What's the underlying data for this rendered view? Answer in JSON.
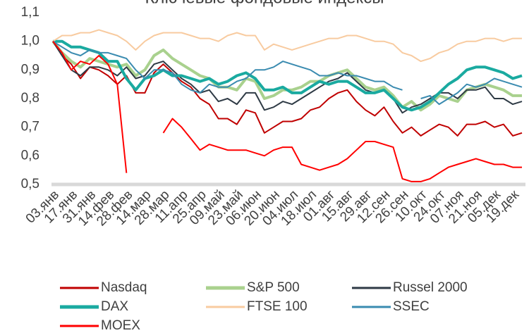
{
  "chart_data": {
    "type": "line",
    "title": "Ключевые фондовые индексы",
    "categories": [
      "03.янв",
      null,
      "17.янв",
      null,
      "31.янв",
      null,
      "14.фев",
      null,
      "28.фев",
      null,
      "14.мар",
      null,
      "28.мар",
      null,
      "11.апр",
      null,
      "25.апр",
      null,
      "09.май",
      null,
      "23.май",
      null,
      "06.июн",
      null,
      "20.июн",
      null,
      "04.июл",
      null,
      "18.июл",
      null,
      "01.авг",
      null,
      "15.авг",
      null,
      "29.авг",
      null,
      "12.сен",
      null,
      "26.сен",
      null,
      "10.окт",
      null,
      "24.окт",
      null,
      "07.ноя",
      null,
      "21.ноя",
      null,
      "05.дек",
      null,
      "19.дек",
      null
    ],
    "ylim": [
      0.5,
      1.1
    ],
    "yticks": [
      {
        "value": 0.5,
        "label": "0,5"
      },
      {
        "value": 0.6,
        "label": "0,6"
      },
      {
        "value": 0.7,
        "label": "0,7"
      },
      {
        "value": 0.8,
        "label": "0,8"
      },
      {
        "value": 0.9,
        "label": "0,9"
      },
      {
        "value": 1.0,
        "label": "1,0"
      },
      {
        "value": 1.1,
        "label": "1,1"
      }
    ],
    "grid": false,
    "series": [
      {
        "name": "Nasdaq",
        "color": "#c00000",
        "width": 2,
        "values": [
          1.0,
          0.95,
          0.92,
          0.87,
          0.91,
          0.9,
          0.88,
          0.85,
          0.88,
          0.82,
          0.82,
          0.89,
          0.92,
          0.89,
          0.86,
          0.84,
          0.8,
          0.78,
          0.73,
          0.73,
          0.71,
          0.76,
          0.75,
          0.68,
          0.7,
          0.72,
          0.72,
          0.73,
          0.76,
          0.77,
          0.8,
          0.82,
          0.83,
          0.79,
          0.76,
          0.74,
          0.77,
          0.72,
          0.68,
          0.7,
          0.67,
          0.69,
          0.71,
          0.7,
          0.67,
          0.71,
          0.71,
          0.72,
          0.7,
          0.71,
          0.67,
          0.68
        ]
      },
      {
        "name": "S&P 500",
        "color": "#a9d18e",
        "width": 4,
        "values": [
          1.0,
          0.96,
          0.93,
          0.91,
          0.94,
          0.93,
          0.92,
          0.91,
          0.92,
          0.88,
          0.9,
          0.95,
          0.97,
          0.94,
          0.92,
          0.9,
          0.88,
          0.87,
          0.84,
          0.84,
          0.83,
          0.87,
          0.86,
          0.8,
          0.81,
          0.83,
          0.83,
          0.84,
          0.86,
          0.86,
          0.88,
          0.89,
          0.9,
          0.87,
          0.84,
          0.83,
          0.84,
          0.81,
          0.77,
          0.79,
          0.76,
          0.78,
          0.81,
          0.8,
          0.79,
          0.83,
          0.84,
          0.85,
          0.84,
          0.83,
          0.81,
          0.81
        ]
      },
      {
        "name": "Russel 2000",
        "color": "#2e3a45",
        "width": 2,
        "values": [
          1.0,
          0.95,
          0.9,
          0.88,
          0.91,
          0.91,
          0.9,
          0.88,
          0.91,
          0.87,
          0.88,
          0.92,
          0.93,
          0.9,
          0.87,
          0.85,
          0.82,
          0.83,
          0.79,
          0.8,
          0.78,
          0.82,
          0.82,
          0.76,
          0.77,
          0.79,
          0.78,
          0.8,
          0.82,
          0.84,
          0.86,
          0.87,
          0.89,
          0.86,
          0.83,
          0.82,
          0.83,
          0.8,
          0.75,
          0.77,
          0.78,
          0.8,
          0.82,
          0.82,
          0.8,
          0.83,
          0.83,
          0.84,
          0.8,
          0.8,
          0.78,
          0.79
        ]
      },
      {
        "name": "DAX",
        "color": "#1aaaa0",
        "width": 4,
        "values": [
          1.0,
          1.0,
          0.98,
          0.98,
          0.97,
          0.96,
          0.93,
          0.93,
          0.87,
          0.83,
          0.87,
          0.88,
          0.9,
          0.88,
          0.88,
          0.87,
          0.86,
          0.87,
          0.85,
          0.86,
          0.88,
          0.89,
          0.87,
          0.83,
          0.83,
          0.84,
          0.82,
          0.82,
          0.84,
          0.86,
          0.85,
          0.86,
          0.86,
          0.84,
          0.82,
          0.82,
          0.83,
          0.8,
          0.77,
          0.76,
          0.77,
          0.79,
          0.82,
          0.85,
          0.87,
          0.9,
          0.91,
          0.91,
          0.9,
          0.89,
          0.87,
          0.88
        ]
      },
      {
        "name": "FTSE 100",
        "color": "#f8cba0",
        "width": 2,
        "values": [
          1.0,
          1.02,
          1.02,
          1.03,
          1.03,
          1.04,
          1.03,
          1.02,
          1.0,
          0.97,
          1.0,
          1.02,
          1.03,
          1.03,
          1.03,
          1.02,
          1.01,
          1.01,
          1.0,
          1.02,
          1.03,
          1.02,
          1.02,
          0.97,
          0.99,
          0.98,
          0.97,
          0.98,
          0.99,
          1.0,
          1.01,
          1.01,
          1.02,
          1.02,
          1.01,
          1.0,
          1.0,
          0.99,
          0.96,
          0.95,
          0.93,
          0.94,
          0.96,
          0.97,
          0.99,
          1.0,
          1.0,
          1.01,
          1.01,
          1.0,
          1.01,
          1.01
        ]
      },
      {
        "name": "SSEC",
        "color": "#3a8bb0",
        "width": 2,
        "values": [
          1.0,
          0.98,
          0.96,
          0.95,
          0.97,
          0.96,
          0.96,
          0.95,
          0.94,
          0.9,
          0.87,
          0.9,
          0.9,
          0.89,
          0.85,
          0.83,
          0.82,
          0.85,
          0.84,
          0.84,
          0.86,
          0.87,
          0.9,
          0.9,
          0.91,
          0.93,
          0.92,
          0.91,
          0.9,
          0.88,
          0.88,
          0.89,
          0.88,
          0.88,
          0.87,
          0.86,
          0.86,
          0.84,
          0.83,
          null,
          0.8,
          0.81,
          0.78,
          0.8,
          0.82,
          0.85,
          0.84,
          0.85,
          0.87,
          0.86,
          0.85,
          0.84
        ]
      },
      {
        "name": "MOEX",
        "color": "#ff0000",
        "width": 2,
        "values": [
          1.0,
          0.96,
          0.9,
          0.93,
          0.92,
          0.95,
          0.92,
          0.85,
          0.54,
          null,
          null,
          null,
          0.68,
          0.73,
          0.7,
          0.66,
          0.62,
          0.64,
          0.63,
          0.62,
          0.62,
          0.62,
          0.61,
          0.6,
          0.62,
          0.63,
          0.63,
          0.57,
          0.56,
          0.55,
          0.56,
          0.57,
          0.59,
          0.62,
          0.65,
          0.65,
          0.64,
          0.63,
          0.52,
          0.51,
          0.51,
          0.52,
          0.54,
          0.56,
          0.57,
          0.58,
          0.59,
          0.58,
          0.57,
          0.57,
          0.56,
          0.56
        ]
      }
    ]
  }
}
